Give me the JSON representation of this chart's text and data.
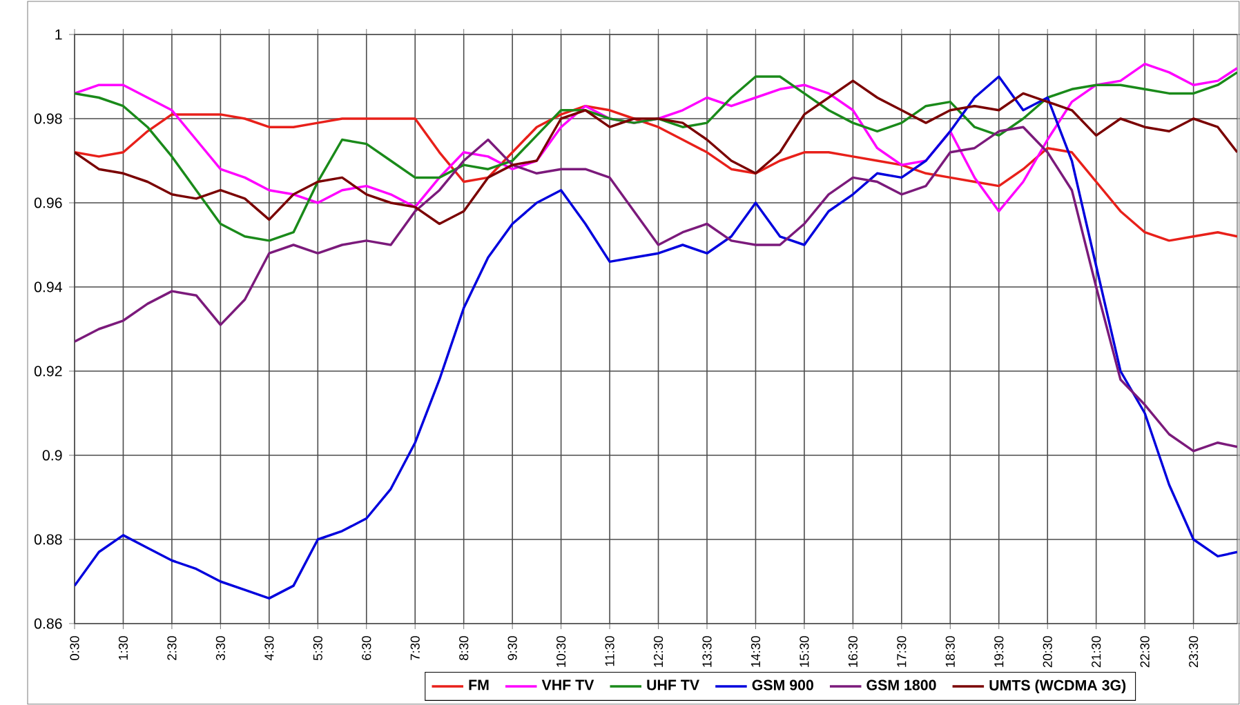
{
  "chart_data": {
    "type": "line",
    "x": [
      0.5,
      1,
      1.5,
      2,
      2.5,
      3,
      3.5,
      4,
      4.5,
      5,
      5.5,
      6,
      6.5,
      7,
      7.5,
      8,
      8.5,
      9,
      9.5,
      10,
      10.5,
      11,
      11.5,
      12,
      12.5,
      13,
      13.5,
      14,
      14.5,
      15,
      15.5,
      16,
      16.5,
      17,
      17.5,
      18,
      18.5,
      19,
      19.5,
      20,
      20.5,
      21,
      21.5,
      22,
      22.5,
      23,
      23.5,
      24,
      24.4
    ],
    "series": [
      {
        "name": "FM",
        "color": "#e8201a",
        "values": [
          0.972,
          0.971,
          0.972,
          0.977,
          0.981,
          0.981,
          0.981,
          0.98,
          0.978,
          0.978,
          0.979,
          0.98,
          0.98,
          0.98,
          0.98,
          0.972,
          0.965,
          0.966,
          0.972,
          0.978,
          0.981,
          0.983,
          0.982,
          0.98,
          0.978,
          0.975,
          0.972,
          0.968,
          0.967,
          0.97,
          0.972,
          0.972,
          0.971,
          0.97,
          0.969,
          0.967,
          0.966,
          0.965,
          0.964,
          0.968,
          0.973,
          0.972,
          0.965,
          0.958,
          0.953,
          0.951,
          0.952,
          0.953,
          0.952
        ]
      },
      {
        "name": "VHF TV",
        "color": "#ff00ff",
        "values": [
          0.986,
          0.988,
          0.988,
          0.985,
          0.982,
          0.975,
          0.968,
          0.966,
          0.963,
          0.962,
          0.96,
          0.963,
          0.964,
          0.962,
          0.959,
          0.966,
          0.972,
          0.971,
          0.968,
          0.97,
          0.978,
          0.983,
          0.98,
          0.979,
          0.98,
          0.982,
          0.985,
          0.983,
          0.985,
          0.987,
          0.988,
          0.986,
          0.982,
          0.973,
          0.969,
          0.97,
          0.977,
          0.966,
          0.958,
          0.965,
          0.975,
          0.984,
          0.988,
          0.989,
          0.993,
          0.991,
          0.988,
          0.989,
          0.992
        ]
      },
      {
        "name": "UHF TV",
        "color": "#1a8a1a",
        "values": [
          0.986,
          0.985,
          0.983,
          0.978,
          0.971,
          0.963,
          0.955,
          0.952,
          0.951,
          0.953,
          0.965,
          0.975,
          0.974,
          0.97,
          0.966,
          0.966,
          0.969,
          0.968,
          0.97,
          0.976,
          0.982,
          0.982,
          0.98,
          0.979,
          0.98,
          0.978,
          0.979,
          0.985,
          0.99,
          0.99,
          0.986,
          0.982,
          0.979,
          0.977,
          0.979,
          0.983,
          0.984,
          0.978,
          0.976,
          0.98,
          0.985,
          0.987,
          0.988,
          0.988,
          0.987,
          0.986,
          0.986,
          0.988,
          0.991
        ]
      },
      {
        "name": "GSM 900",
        "color": "#0000dd",
        "values": [
          0.869,
          0.877,
          0.881,
          0.878,
          0.875,
          0.873,
          0.87,
          0.868,
          0.866,
          0.869,
          0.88,
          0.882,
          0.885,
          0.892,
          0.903,
          0.918,
          0.935,
          0.947,
          0.955,
          0.96,
          0.963,
          0.955,
          0.946,
          0.947,
          0.948,
          0.95,
          0.948,
          0.952,
          0.96,
          0.952,
          0.95,
          0.958,
          0.962,
          0.967,
          0.966,
          0.97,
          0.977,
          0.985,
          0.99,
          0.982,
          0.985,
          0.97,
          0.945,
          0.92,
          0.91,
          0.893,
          0.88,
          0.876,
          0.877
        ]
      },
      {
        "name": "GSM 1800",
        "color": "#7b1a7b",
        "values": [
          0.927,
          0.93,
          0.932,
          0.936,
          0.939,
          0.938,
          0.931,
          0.937,
          0.948,
          0.95,
          0.948,
          0.95,
          0.951,
          0.95,
          0.958,
          0.963,
          0.97,
          0.975,
          0.969,
          0.967,
          0.968,
          0.968,
          0.966,
          0.958,
          0.95,
          0.953,
          0.955,
          0.951,
          0.95,
          0.95,
          0.955,
          0.962,
          0.966,
          0.965,
          0.962,
          0.964,
          0.972,
          0.973,
          0.977,
          0.978,
          0.972,
          0.963,
          0.94,
          0.918,
          0.912,
          0.905,
          0.901,
          0.903,
          0.902
        ]
      },
      {
        "name": "UMTS (WCDMA 3G)",
        "color": "#7a0000",
        "values": [
          0.972,
          0.968,
          0.967,
          0.965,
          0.962,
          0.961,
          0.963,
          0.961,
          0.956,
          0.962,
          0.965,
          0.966,
          0.962,
          0.96,
          0.959,
          0.955,
          0.958,
          0.966,
          0.969,
          0.97,
          0.98,
          0.982,
          0.978,
          0.98,
          0.98,
          0.979,
          0.975,
          0.97,
          0.967,
          0.972,
          0.981,
          0.985,
          0.989,
          0.985,
          0.982,
          0.979,
          0.982,
          0.983,
          0.982,
          0.986,
          0.984,
          0.982,
          0.976,
          0.98,
          0.978,
          0.977,
          0.98,
          0.978,
          0.972
        ]
      }
    ],
    "xlim": [
      0.5,
      24.4
    ],
    "xticks": [
      {
        "value": 0.5,
        "label": "0:30"
      },
      {
        "value": 1.5,
        "label": "1:30"
      },
      {
        "value": 2.5,
        "label": "2:30"
      },
      {
        "value": 3.5,
        "label": "3:30"
      },
      {
        "value": 4.5,
        "label": "4:30"
      },
      {
        "value": 5.5,
        "label": "5:30"
      },
      {
        "value": 6.5,
        "label": "6:30"
      },
      {
        "value": 7.5,
        "label": "7:30"
      },
      {
        "value": 8.5,
        "label": "8:30"
      },
      {
        "value": 9.5,
        "label": "9:30"
      },
      {
        "value": 10.5,
        "label": "10:30"
      },
      {
        "value": 11.5,
        "label": "11:30"
      },
      {
        "value": 12.5,
        "label": "12:30"
      },
      {
        "value": 13.5,
        "label": "13:30"
      },
      {
        "value": 14.5,
        "label": "14:30"
      },
      {
        "value": 15.5,
        "label": "15:30"
      },
      {
        "value": 16.5,
        "label": "16:30"
      },
      {
        "value": 17.5,
        "label": "17:30"
      },
      {
        "value": 18.5,
        "label": "18:30"
      },
      {
        "value": 19.5,
        "label": "19:30"
      },
      {
        "value": 20.5,
        "label": "20:30"
      },
      {
        "value": 21.5,
        "label": "21:30"
      },
      {
        "value": 22.5,
        "label": "22:30"
      },
      {
        "value": 23.5,
        "label": "23:30"
      }
    ],
    "ylim": [
      0.86,
      1
    ],
    "yticks": [
      {
        "value": 0.86,
        "label": "0.86"
      },
      {
        "value": 0.88,
        "label": "0.88"
      },
      {
        "value": 0.9,
        "label": "0.9"
      },
      {
        "value": 0.92,
        "label": "0.92"
      },
      {
        "value": 0.94,
        "label": "0.94"
      },
      {
        "value": 0.96,
        "label": "0.96"
      },
      {
        "value": 0.98,
        "label": "0.98"
      },
      {
        "value": 1,
        "label": "1"
      }
    ],
    "grid": true,
    "legend": "bottom"
  }
}
